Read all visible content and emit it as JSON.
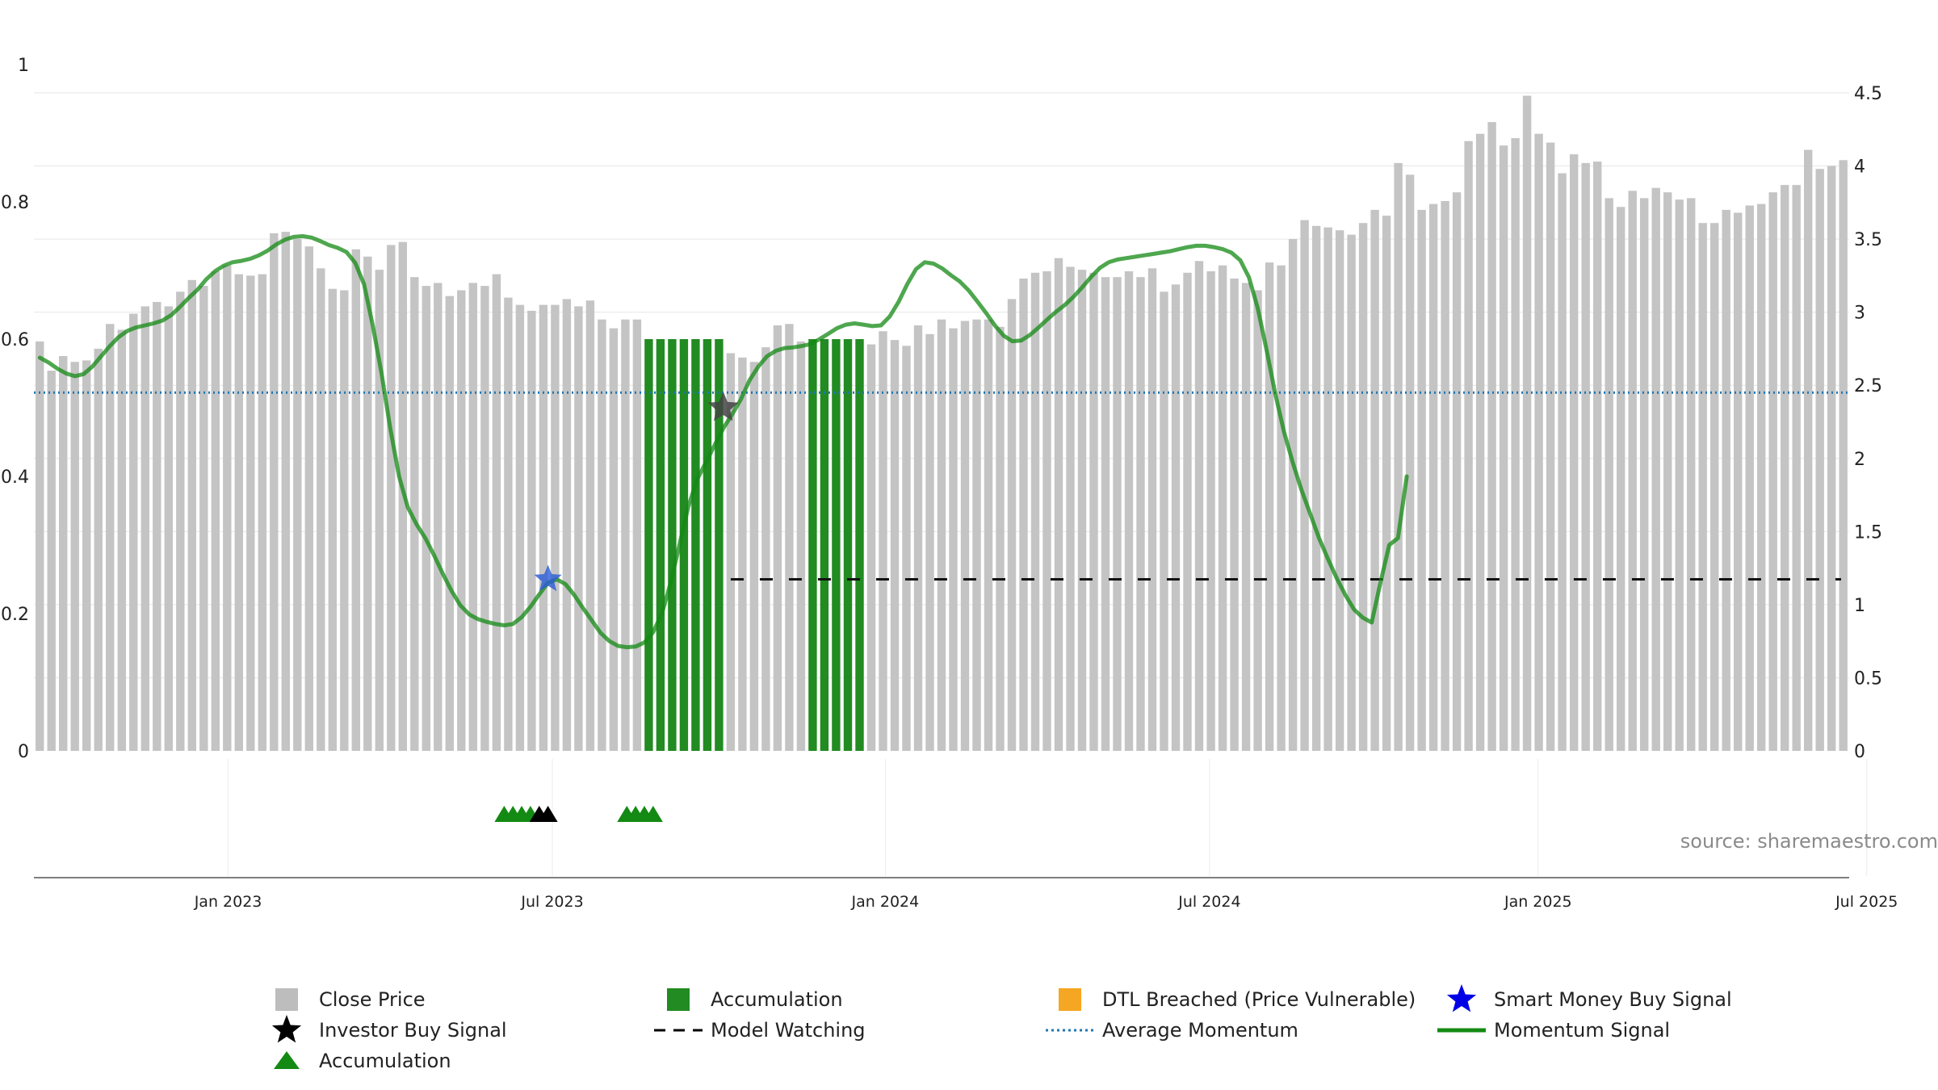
{
  "chart_data": {
    "type": "bar",
    "source": "source: sharemaestro.com",
    "y_left": {
      "ticks": [
        "0",
        "0.2",
        "0.4",
        "0.6",
        "0.8",
        "1"
      ],
      "range": [
        0,
        1
      ]
    },
    "y_right": {
      "ticks": [
        "0",
        "0.5",
        "1",
        "1.5",
        "2",
        "2.5",
        "3",
        "3.5",
        "4",
        "4.5"
      ],
      "range": [
        0,
        4.5
      ]
    },
    "x_axis": {
      "ticks": [
        "Jan 2023",
        "Jul 2023",
        "Jan 2024",
        "Jul 2024",
        "Jan 2025",
        "Jul 2025"
      ]
    },
    "average_momentum": 0.522,
    "model_watching_level": 0.25,
    "model_watching_start": 59,
    "close_price": [
      2.8,
      2.6,
      2.7,
      2.66,
      2.67,
      2.75,
      2.92,
      2.88,
      2.99,
      3.04,
      3.07,
      3.04,
      3.14,
      3.22,
      3.18,
      3.28,
      3.32,
      3.26,
      3.25,
      3.26,
      3.54,
      3.55,
      3.5,
      3.45,
      3.3,
      3.16,
      3.15,
      3.43,
      3.38,
      3.29,
      3.46,
      3.48,
      3.24,
      3.18,
      3.2,
      3.11,
      3.15,
      3.2,
      3.18,
      3.26,
      3.1,
      3.05,
      3.01,
      3.05,
      3.05,
      3.09,
      3.04,
      3.08,
      2.95,
      2.89,
      2.95,
      2.95,
      2.81,
      2.74,
      2.79,
      2.69,
      2.71,
      2.71,
      2.61,
      2.72,
      2.69,
      2.66,
      2.76,
      2.91,
      2.92,
      2.8,
      2.84,
      2.86,
      2.88,
      2.87,
      2.9,
      2.78,
      2.87,
      2.81,
      2.77,
      2.91,
      2.85,
      2.95,
      2.89,
      2.94,
      2.95,
      2.95,
      2.9,
      3.09,
      3.23,
      3.27,
      3.28,
      3.37,
      3.31,
      3.29,
      3.27,
      3.24,
      3.24,
      3.28,
      3.24,
      3.3,
      3.14,
      3.19,
      3.27,
      3.35,
      3.28,
      3.32,
      3.23,
      3.2,
      3.15,
      3.34,
      3.32,
      3.5,
      3.63,
      3.59,
      3.58,
      3.56,
      3.53,
      3.61,
      3.7,
      3.66,
      4.02,
      3.94,
      3.7,
      3.74,
      3.76,
      3.82,
      4.17,
      4.22,
      4.3,
      4.14,
      4.19,
      4.48,
      4.22,
      4.16,
      3.95,
      4.08,
      4.02,
      4.03,
      3.78,
      3.72,
      3.83,
      3.78,
      3.85,
      3.82,
      3.77,
      3.78,
      3.61,
      3.61,
      3.7,
      3.68,
      3.73,
      3.74,
      3.82,
      3.87,
      3.87,
      4.11,
      3.98,
      4.0,
      4.04
    ],
    "accumulation_bars": [
      52,
      53,
      54,
      55,
      56,
      57,
      58,
      66,
      67,
      68,
      69,
      70
    ],
    "momentum_signal": [
      [
        0,
        0.573
      ],
      [
        1,
        0.566
      ],
      [
        2,
        0.557
      ],
      [
        3,
        0.55
      ],
      [
        4,
        0.546
      ],
      [
        5,
        0.549
      ],
      [
        6,
        0.56
      ],
      [
        7,
        0.575
      ],
      [
        8,
        0.59
      ],
      [
        9,
        0.603
      ],
      [
        10,
        0.612
      ],
      [
        11,
        0.617
      ],
      [
        12,
        0.62
      ],
      [
        13,
        0.623
      ],
      [
        14,
        0.627
      ],
      [
        15,
        0.635
      ],
      [
        16,
        0.647
      ],
      [
        17,
        0.66
      ],
      [
        18,
        0.672
      ],
      [
        19,
        0.687
      ],
      [
        20,
        0.699
      ],
      [
        21,
        0.707
      ],
      [
        22,
        0.712
      ],
      [
        23,
        0.714
      ],
      [
        24,
        0.717
      ],
      [
        25,
        0.722
      ],
      [
        26,
        0.729
      ],
      [
        27,
        0.738
      ],
      [
        28,
        0.745
      ],
      [
        29,
        0.749
      ],
      [
        30,
        0.75
      ],
      [
        31,
        0.748
      ],
      [
        32,
        0.743
      ],
      [
        33,
        0.737
      ],
      [
        34,
        0.733
      ],
      [
        35,
        0.727
      ],
      [
        36,
        0.711
      ],
      [
        37,
        0.68
      ],
      [
        38,
        0.62
      ],
      [
        39,
        0.55
      ],
      [
        40,
        0.47
      ],
      [
        41,
        0.4
      ],
      [
        42,
        0.355
      ],
      [
        43,
        0.33
      ],
      [
        44,
        0.31
      ],
      [
        45,
        0.285
      ],
      [
        46,
        0.258
      ],
      [
        47,
        0.233
      ],
      [
        48,
        0.212
      ],
      [
        49,
        0.199
      ],
      [
        50,
        0.192
      ],
      [
        51,
        0.188
      ],
      [
        52,
        0.185
      ],
      [
        53,
        0.183
      ],
      [
        54,
        0.185
      ],
      [
        55,
        0.195
      ],
      [
        56,
        0.21
      ],
      [
        57,
        0.228
      ],
      [
        58,
        0.245
      ],
      [
        59,
        0.25
      ],
      [
        60,
        0.243
      ],
      [
        61,
        0.227
      ],
      [
        62,
        0.208
      ],
      [
        63,
        0.19
      ],
      [
        64,
        0.172
      ],
      [
        65,
        0.16
      ],
      [
        66,
        0.153
      ],
      [
        67,
        0.151
      ],
      [
        68,
        0.152
      ],
      [
        69,
        0.158
      ],
      [
        70,
        0.173
      ],
      [
        71,
        0.2
      ],
      [
        72,
        0.245
      ],
      [
        73,
        0.3
      ],
      [
        74,
        0.355
      ],
      [
        75,
        0.395
      ],
      [
        76,
        0.42
      ],
      [
        77,
        0.445
      ],
      [
        78,
        0.47
      ],
      [
        79,
        0.49
      ],
      [
        80,
        0.512
      ],
      [
        81,
        0.54
      ],
      [
        82,
        0.56
      ],
      [
        83,
        0.575
      ],
      [
        84,
        0.583
      ],
      [
        85,
        0.587
      ],
      [
        86,
        0.588
      ],
      [
        87,
        0.59
      ],
      [
        88,
        0.593
      ],
      [
        89,
        0.6
      ],
      [
        90,
        0.608
      ],
      [
        91,
        0.616
      ],
      [
        92,
        0.621
      ],
      [
        93,
        0.623
      ],
      [
        94,
        0.621
      ],
      [
        95,
        0.619
      ],
      [
        96,
        0.62
      ],
      [
        97,
        0.633
      ],
      [
        98,
        0.654
      ],
      [
        99,
        0.68
      ],
      [
        100,
        0.702
      ],
      [
        101,
        0.712
      ],
      [
        102,
        0.71
      ],
      [
        103,
        0.703
      ],
      [
        104,
        0.693
      ],
      [
        105,
        0.684
      ],
      [
        106,
        0.671
      ],
      [
        107,
        0.655
      ],
      [
        108,
        0.638
      ],
      [
        109,
        0.62
      ],
      [
        110,
        0.605
      ],
      [
        111,
        0.597
      ],
      [
        112,
        0.598
      ],
      [
        113,
        0.606
      ],
      [
        114,
        0.617
      ],
      [
        115,
        0.629
      ],
      [
        116,
        0.64
      ],
      [
        117,
        0.65
      ],
      [
        118,
        0.662
      ],
      [
        119,
        0.676
      ],
      [
        120,
        0.691
      ],
      [
        121,
        0.704
      ],
      [
        122,
        0.712
      ],
      [
        123,
        0.716
      ],
      [
        124,
        0.718
      ],
      [
        125,
        0.72
      ],
      [
        126,
        0.722
      ],
      [
        127,
        0.724
      ],
      [
        128,
        0.726
      ],
      [
        129,
        0.728
      ],
      [
        130,
        0.731
      ],
      [
        131,
        0.734
      ],
      [
        132,
        0.736
      ],
      [
        133,
        0.736
      ],
      [
        134,
        0.734
      ],
      [
        135,
        0.731
      ],
      [
        136,
        0.726
      ],
      [
        137,
        0.715
      ],
      [
        138,
        0.69
      ],
      [
        139,
        0.645
      ],
      [
        140,
        0.585
      ],
      [
        141,
        0.52
      ],
      [
        142,
        0.465
      ],
      [
        143,
        0.42
      ],
      [
        144,
        0.38
      ],
      [
        145,
        0.345
      ],
      [
        146,
        0.31
      ],
      [
        147,
        0.28
      ],
      [
        148,
        0.252
      ],
      [
        149,
        0.227
      ],
      [
        150,
        0.206
      ],
      [
        151,
        0.194
      ],
      [
        152,
        0.187
      ],
      [
        153,
        0.245
      ],
      [
        154,
        0.3
      ],
      [
        155,
        0.31
      ],
      [
        156,
        0.4
      ]
    ],
    "accumulation_markers": [
      53,
      54,
      55,
      56,
      67,
      68,
      69,
      70
    ],
    "investor_buy_markers": [
      57,
      58
    ],
    "smart_money_buy_signals": [
      [
        58,
        0.25
      ]
    ],
    "investor_buy_signals": [
      [
        78,
        0.5
      ]
    ],
    "legend": [
      {
        "label": "Close Price",
        "icon": "gray-square",
        "color": "#bdbdbd"
      },
      {
        "label": "Accumulation",
        "icon": "green-square",
        "color": "#228b22"
      },
      {
        "label": "DTL Breached (Price Vulnerable)",
        "icon": "orange-square",
        "color": "#f5a623"
      },
      {
        "label": "Smart Money Buy Signal",
        "icon": "blue-star",
        "color": "#0000e6"
      },
      {
        "label": "Investor Buy Signal",
        "icon": "black-star",
        "color": "#000000"
      },
      {
        "label": "Model Watching",
        "icon": "black-dashed-line",
        "color": "#000000"
      },
      {
        "label": "Average Momentum",
        "icon": "blue-dotted-line",
        "color": "#1f77b4"
      },
      {
        "label": "Momentum Signal",
        "icon": "green-line",
        "color": "#138a13"
      },
      {
        "label": "Accumulation",
        "icon": "green-triangle",
        "color": "#138a13"
      }
    ]
  }
}
